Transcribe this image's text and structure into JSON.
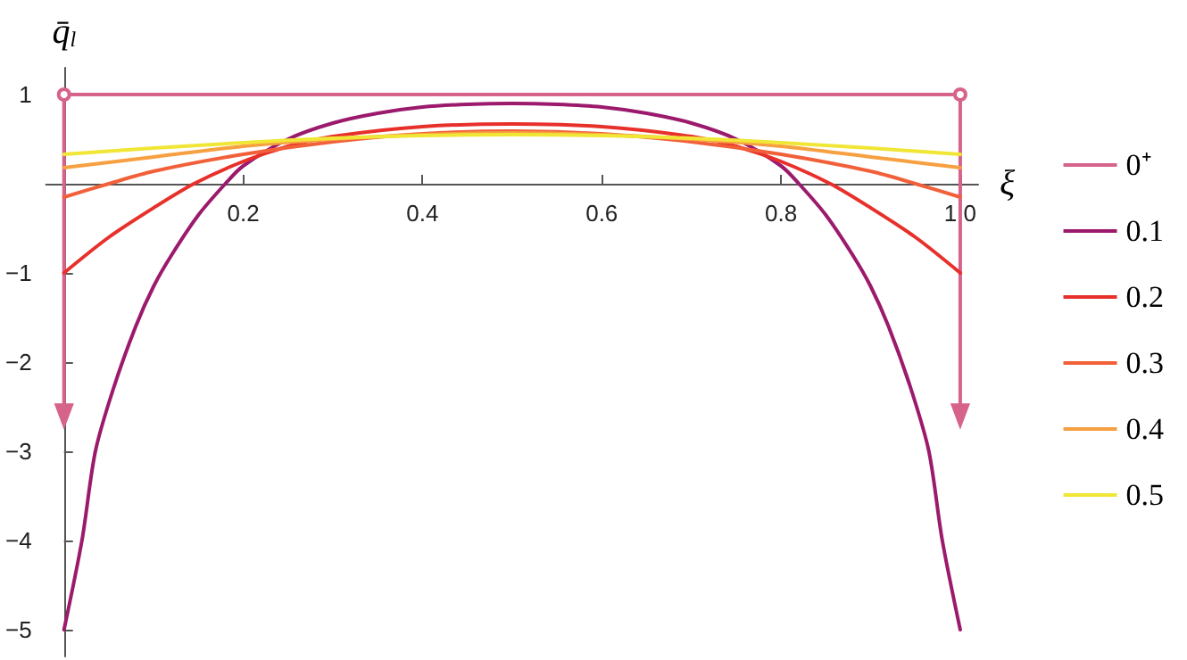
{
  "chart_data": {
    "type": "line",
    "xlabel": "ξ",
    "ylabel": "q̄$_{l}$",
    "xlim": [
      -0.02,
      1.02
    ],
    "ylim": [
      -5.3,
      1.3
    ],
    "xticks": [
      0.2,
      0.4,
      0.6,
      0.8,
      {
        "value": 1,
        "label": "1.0"
      }
    ],
    "yticks": [
      -5,
      -4,
      -3,
      -2,
      -1,
      1
    ],
    "grid": false,
    "legend": "right",
    "marker": "none",
    "line_style": "solid",
    "series": [
      {
        "name": "0⁺",
        "color": "#d6638c",
        "marker": "triangle",
        "x": [
          0,
          0,
          1,
          1
        ],
        "values": [
          -2.6,
          1,
          1,
          -2.6
        ]
      },
      {
        "name": "0.1",
        "color": "#9c1a6c",
        "x": [
          0,
          0.02,
          0.035,
          0.055,
          0.08,
          0.1,
          0.12,
          0.15,
          0.18,
          0.2,
          0.25,
          0.3,
          0.35,
          0.4,
          0.45,
          0.5,
          0.55,
          0.6,
          0.65,
          0.7,
          0.75,
          0.8,
          0.82,
          0.85,
          0.88,
          0.9,
          0.92,
          0.945,
          0.965,
          0.98,
          1
        ],
        "values": [
          -5,
          -4,
          -3,
          -2.3,
          -1.6,
          -1.15,
          -0.8,
          -0.35,
          0,
          0.2,
          0.5,
          0.68,
          0.79,
          0.86,
          0.89,
          0.9,
          0.89,
          0.86,
          0.79,
          0.68,
          0.5,
          0.2,
          0,
          -0.35,
          -0.8,
          -1.15,
          -1.6,
          -2.3,
          -3,
          -4,
          -5
        ]
      },
      {
        "name": "0.2",
        "color": "#e8302b",
        "x": [
          0,
          0.05,
          0.1,
          0.145,
          0.2,
          0.25,
          0.3,
          0.4,
          0.5,
          0.6,
          0.7,
          0.75,
          0.8,
          0.855,
          0.9,
          0.95,
          1
        ],
        "values": [
          -1,
          -0.6,
          -0.27,
          0,
          0.25,
          0.42,
          0.53,
          0.64,
          0.67,
          0.64,
          0.53,
          0.42,
          0.25,
          0,
          -0.27,
          -0.6,
          -1
        ]
      },
      {
        "name": "0.3",
        "color": "#f2603a",
        "x": [
          0,
          0.05,
          0.1,
          0.2,
          0.3,
          0.4,
          0.5,
          0.6,
          0.7,
          0.8,
          0.9,
          0.95,
          1
        ],
        "values": [
          -0.15,
          0,
          0.14,
          0.33,
          0.47,
          0.56,
          0.59,
          0.56,
          0.47,
          0.33,
          0.14,
          0,
          -0.15
        ]
      },
      {
        "name": "0.4",
        "color": "#f7a041",
        "x": [
          0,
          0.1,
          0.2,
          0.3,
          0.4,
          0.5,
          0.6,
          0.7,
          0.8,
          0.9,
          1
        ],
        "values": [
          0.18,
          0.3,
          0.42,
          0.5,
          0.55,
          0.57,
          0.55,
          0.5,
          0.42,
          0.3,
          0.18
        ]
      },
      {
        "name": "0.5",
        "color": "#f0e635",
        "x": [
          0,
          0.1,
          0.2,
          0.3,
          0.4,
          0.5,
          0.6,
          0.7,
          0.8,
          0.9,
          1
        ],
        "values": [
          0.33,
          0.4,
          0.46,
          0.51,
          0.54,
          0.55,
          0.54,
          0.51,
          0.46,
          0.4,
          0.33
        ]
      }
    ]
  }
}
